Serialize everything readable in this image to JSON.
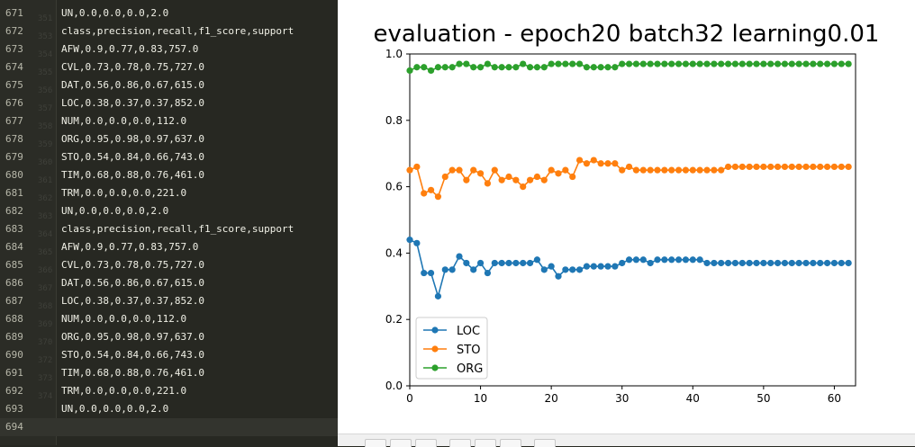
{
  "editor": {
    "lines": [
      {
        "num": "671",
        "text": "UN,0.0,0.0,0.0,2.0",
        "ghost": "351"
      },
      {
        "num": "672",
        "text": "class,precision,recall,f1_score,support",
        "ghost": "353"
      },
      {
        "num": "673",
        "text": "AFW,0.9,0.77,0.83,757.0",
        "ghost": "354"
      },
      {
        "num": "674",
        "text": "CVL,0.73,0.78,0.75,727.0",
        "ghost": "355"
      },
      {
        "num": "675",
        "text": "DAT,0.56,0.86,0.67,615.0",
        "ghost": "356"
      },
      {
        "num": "676",
        "text": "LOC,0.38,0.37,0.37,852.0",
        "ghost": "357"
      },
      {
        "num": "677",
        "text": "NUM,0.0,0.0,0.0,112.0",
        "ghost": "358"
      },
      {
        "num": "678",
        "text": "ORG,0.95,0.98,0.97,637.0",
        "ghost": "359"
      },
      {
        "num": "679",
        "text": "STO,0.54,0.84,0.66,743.0",
        "ghost": "360"
      },
      {
        "num": "680",
        "text": "TIM,0.68,0.88,0.76,461.0",
        "ghost": "361"
      },
      {
        "num": "681",
        "text": "TRM,0.0,0.0,0.0,221.0",
        "ghost": "362"
      },
      {
        "num": "682",
        "text": "UN,0.0,0.0,0.0,2.0",
        "ghost": "363"
      },
      {
        "num": "683",
        "text": "class,precision,recall,f1_score,support",
        "ghost": "364"
      },
      {
        "num": "684",
        "text": "AFW,0.9,0.77,0.83,757.0",
        "ghost": "365"
      },
      {
        "num": "685",
        "text": "CVL,0.73,0.78,0.75,727.0",
        "ghost": "366"
      },
      {
        "num": "686",
        "text": "DAT,0.56,0.86,0.67,615.0",
        "ghost": "367"
      },
      {
        "num": "687",
        "text": "LOC,0.38,0.37,0.37,852.0",
        "ghost": "368"
      },
      {
        "num": "688",
        "text": "NUM,0.0,0.0,0.0,112.0",
        "ghost": "369"
      },
      {
        "num": "689",
        "text": "ORG,0.95,0.98,0.97,637.0",
        "ghost": "370"
      },
      {
        "num": "690",
        "text": "STO,0.54,0.84,0.66,743.0",
        "ghost": "372"
      },
      {
        "num": "691",
        "text": "TIM,0.68,0.88,0.76,461.0",
        "ghost": "373"
      },
      {
        "num": "692",
        "text": "TRM,0.0,0.0,0.0,221.0",
        "ghost": "374"
      },
      {
        "num": "693",
        "text": "UN,0.0,0.0,0.0,2.0",
        "ghost": ""
      },
      {
        "num": "694",
        "text": "",
        "ghost": ""
      }
    ]
  },
  "chart_data": {
    "type": "line",
    "title": "evaluation - epoch20 batch32 learning0.01",
    "xlabel": "",
    "ylabel": "",
    "xlim": [
      0,
      63
    ],
    "ylim": [
      0.0,
      1.0
    ],
    "xticks": [
      "0",
      "10",
      "20",
      "30",
      "40",
      "50",
      "60"
    ],
    "yticks": [
      "0.0",
      "0.2",
      "0.4",
      "0.6",
      "0.8",
      "1.0"
    ],
    "legend_position": "lower-left",
    "series": [
      {
        "name": "LOC",
        "color": "#1f77b4",
        "values": [
          0.44,
          0.43,
          0.34,
          0.34,
          0.27,
          0.35,
          0.35,
          0.39,
          0.37,
          0.35,
          0.37,
          0.34,
          0.37,
          0.37,
          0.37,
          0.37,
          0.37,
          0.37,
          0.38,
          0.35,
          0.36,
          0.33,
          0.35,
          0.35,
          0.35,
          0.36,
          0.36,
          0.36,
          0.36,
          0.36,
          0.37,
          0.38,
          0.38,
          0.38,
          0.37,
          0.38,
          0.38,
          0.38,
          0.38,
          0.38,
          0.38,
          0.38,
          0.37,
          0.37,
          0.37,
          0.37,
          0.37,
          0.37,
          0.37,
          0.37,
          0.37,
          0.37,
          0.37,
          0.37,
          0.37,
          0.37,
          0.37,
          0.37,
          0.37,
          0.37,
          0.37,
          0.37,
          0.37
        ]
      },
      {
        "name": "STO",
        "color": "#ff7f0e",
        "values": [
          0.65,
          0.66,
          0.58,
          0.59,
          0.57,
          0.63,
          0.65,
          0.65,
          0.62,
          0.65,
          0.64,
          0.61,
          0.65,
          0.62,
          0.63,
          0.62,
          0.6,
          0.62,
          0.63,
          0.62,
          0.65,
          0.64,
          0.65,
          0.63,
          0.68,
          0.67,
          0.68,
          0.67,
          0.67,
          0.67,
          0.65,
          0.66,
          0.65,
          0.65,
          0.65,
          0.65,
          0.65,
          0.65,
          0.65,
          0.65,
          0.65,
          0.65,
          0.65,
          0.65,
          0.65,
          0.66,
          0.66,
          0.66,
          0.66,
          0.66,
          0.66,
          0.66,
          0.66,
          0.66,
          0.66,
          0.66,
          0.66,
          0.66,
          0.66,
          0.66,
          0.66,
          0.66,
          0.66
        ]
      },
      {
        "name": "ORG",
        "color": "#2ca02c",
        "values": [
          0.95,
          0.96,
          0.96,
          0.95,
          0.96,
          0.96,
          0.96,
          0.97,
          0.97,
          0.96,
          0.96,
          0.97,
          0.96,
          0.96,
          0.96,
          0.96,
          0.97,
          0.96,
          0.96,
          0.96,
          0.97,
          0.97,
          0.97,
          0.97,
          0.97,
          0.96,
          0.96,
          0.96,
          0.96,
          0.96,
          0.97,
          0.97,
          0.97,
          0.97,
          0.97,
          0.97,
          0.97,
          0.97,
          0.97,
          0.97,
          0.97,
          0.97,
          0.97,
          0.97,
          0.97,
          0.97,
          0.97,
          0.97,
          0.97,
          0.97,
          0.97,
          0.97,
          0.97,
          0.97,
          0.97,
          0.97,
          0.97,
          0.97,
          0.97,
          0.97,
          0.97,
          0.97,
          0.97
        ]
      }
    ]
  }
}
